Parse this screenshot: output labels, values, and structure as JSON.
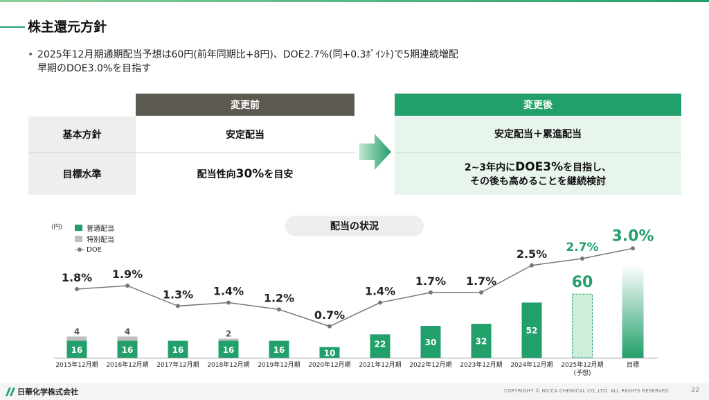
{
  "slide": {
    "title": "株主還元方針",
    "bullet_line1": "2025年12月期通期配当予想は60円(前年同期比+8円)、DOE2.7%(同+0.3ﾎﾟｲﾝﾄ)で5期連続増配",
    "bullet_line2": "早期のDOE3.0%を目指す",
    "bullet_mark": "•"
  },
  "comparison": {
    "before_header": "変更前",
    "after_header": "変更後",
    "rows": [
      {
        "label": "基本方針",
        "before": "安定配当",
        "after_line1": "安定配当＋累進配当",
        "after_line2": ""
      },
      {
        "label": "目標水準",
        "before_pre": "配当性向",
        "before_big": "30%",
        "before_post": "を目安",
        "after_line1_pre": "2~3年内に",
        "after_line1_big": "DOE3%",
        "after_line1_post": "を目指し、",
        "after_line2": "その後も高めることを継続検討"
      }
    ]
  },
  "chart_title": "配当の状況",
  "chart_data": {
    "type": "bar",
    "unit": "(円)",
    "legend": [
      "普通配当",
      "特別配当",
      "DOE"
    ],
    "categories": [
      "2015年12月期",
      "2016年12月期",
      "2017年12月期",
      "2018年12月期",
      "2019年12月期",
      "2020年12月期",
      "2021年12月期",
      "2022年12月期",
      "2023年12月期",
      "2024年12月期",
      "2025年12月期",
      "目標"
    ],
    "sub_labels": [
      "",
      "",
      "",
      "",
      "",
      "",
      "",
      "",
      "",
      "",
      "(予想)",
      ""
    ],
    "series": [
      {
        "name": "普通配当",
        "values": [
          16,
          16,
          16,
          16,
          16,
          10,
          22,
          30,
          32,
          52,
          60,
          null
        ]
      },
      {
        "name": "特別配当",
        "values": [
          4,
          4,
          null,
          2,
          null,
          null,
          null,
          null,
          null,
          null,
          null,
          null
        ]
      },
      {
        "name": "DOE",
        "values": [
          1.8,
          1.9,
          1.3,
          1.4,
          1.2,
          0.7,
          1.4,
          1.7,
          1.7,
          2.5,
          2.7,
          3.0
        ],
        "labels": [
          "1.8%",
          "1.9%",
          "1.3%",
          "1.4%",
          "1.2%",
          "0.7%",
          "1.4%",
          "1.7%",
          "1.7%",
          "2.5%",
          "2.7%",
          "3.0%"
        ]
      }
    ],
    "colors": {
      "regular": "#22a06b",
      "special": "#bfbfbf",
      "doe": "#777777",
      "forecast_fill": "#cdeedb",
      "highlight": "#22a06b"
    }
  },
  "footer": {
    "company": "日華化学株式会社",
    "copyright": "COPYRIGHT © NICCA CHEMICAL CO.,LTD. ALL RIGHTS RESERVED",
    "page": "22"
  }
}
